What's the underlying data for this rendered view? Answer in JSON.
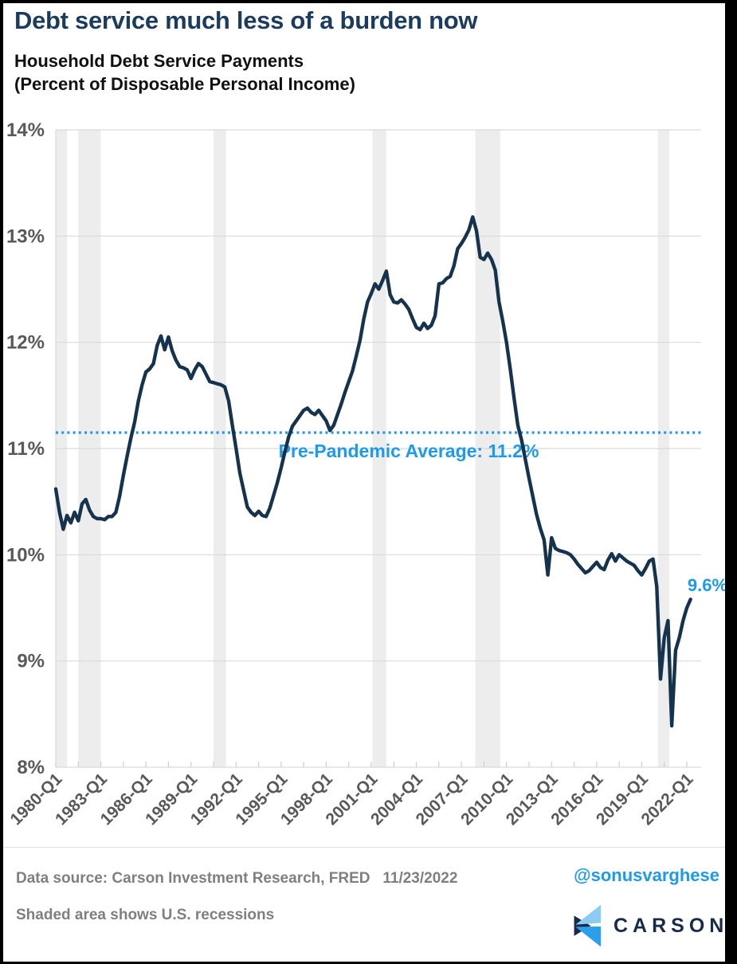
{
  "header": {
    "title": "Debt service much less of a burden now",
    "subtitle_line1": "Household Debt Service Payments",
    "subtitle_line2": "(Percent of Disposable Personal Income)"
  },
  "chart_data": {
    "type": "line",
    "title": "Household Debt Service Payments (Percent of Disposable Personal Income)",
    "x_start_year": 1980,
    "frequency": "quarterly",
    "x_tick_labels": [
      "1980-Q1",
      "1983-Q1",
      "1986-Q1",
      "1989-Q1",
      "1992-Q1",
      "1995-Q1",
      "1998-Q1",
      "2001-Q1",
      "2004-Q1",
      "2007-Q1",
      "2010-Q1",
      "2013-Q1",
      "2016-Q1",
      "2019-Q1",
      "2022-Q1"
    ],
    "y_tick_labels": [
      "14%",
      "13%",
      "12%",
      "11%",
      "10%",
      "9%",
      "8%"
    ],
    "y_tick_values": [
      14,
      13,
      12,
      11,
      10,
      9,
      8
    ],
    "ylim": [
      8,
      14
    ],
    "grid": "horizontal",
    "series": [
      {
        "name": "Household Debt Service Payments (% of Disposable Personal Income)",
        "values": [
          10.62,
          10.4,
          10.24,
          10.37,
          10.3,
          10.4,
          10.32,
          10.48,
          10.52,
          10.42,
          10.36,
          10.34,
          10.34,
          10.33,
          10.36,
          10.36,
          10.4,
          10.55,
          10.75,
          10.93,
          11.1,
          11.25,
          11.45,
          11.6,
          11.72,
          11.75,
          11.8,
          11.97,
          12.06,
          11.93,
          12.05,
          11.92,
          11.83,
          11.77,
          11.76,
          11.74,
          11.66,
          11.74,
          11.8,
          11.77,
          11.7,
          11.63,
          11.62,
          11.61,
          11.6,
          11.58,
          11.45,
          11.22,
          11.0,
          10.77,
          10.61,
          10.45,
          10.4,
          10.37,
          10.41,
          10.37,
          10.36,
          10.44,
          10.56,
          10.68,
          10.82,
          10.97,
          11.11,
          11.21,
          11.26,
          11.31,
          11.36,
          11.38,
          11.34,
          11.32,
          11.36,
          11.31,
          11.26,
          11.17,
          11.22,
          11.32,
          11.42,
          11.53,
          11.63,
          11.73,
          11.87,
          12.02,
          12.22,
          12.38,
          12.46,
          12.55,
          12.5,
          12.58,
          12.67,
          12.45,
          12.38,
          12.37,
          12.4,
          12.36,
          12.31,
          12.22,
          12.14,
          12.12,
          12.18,
          12.13,
          12.16,
          12.25,
          12.55,
          12.56,
          12.6,
          12.62,
          12.72,
          12.88,
          12.93,
          12.99,
          13.06,
          13.18,
          13.05,
          12.8,
          12.78,
          12.84,
          12.78,
          12.68,
          12.38,
          12.2,
          12.0,
          11.75,
          11.48,
          11.22,
          11.08,
          10.9,
          10.72,
          10.55,
          10.38,
          10.25,
          10.14,
          9.81,
          10.16,
          10.06,
          10.04,
          10.03,
          10.02,
          10.0,
          9.96,
          9.91,
          9.87,
          9.83,
          9.85,
          9.89,
          9.93,
          9.88,
          9.86,
          9.95,
          10.01,
          9.94,
          10.0,
          9.97,
          9.94,
          9.92,
          9.9,
          9.85,
          9.81,
          9.87,
          9.94,
          9.96,
          9.7,
          8.83,
          9.22,
          9.38,
          8.39,
          9.1,
          9.22,
          9.38,
          9.5,
          9.58
        ]
      }
    ],
    "average_line": {
      "value": 11.15,
      "label": "Pre-Pandemic Average: 11.2%"
    },
    "end_label": "9.6%",
    "recessions_note": "Shaded area shows U.S. recessions",
    "recession_spans": [
      [
        1980.0,
        1980.75
      ],
      [
        1981.5,
        1983.0
      ],
      [
        1990.5,
        1991.33
      ],
      [
        2001.08,
        2002.0
      ],
      [
        2007.92,
        2009.58
      ],
      [
        2020.08,
        2020.83
      ]
    ],
    "colors": {
      "line": "#16334E",
      "accent": "#1E9AEA",
      "grid": "#D9D9D9",
      "tick": "#CFCFCF",
      "recession_band": "#EDEDED",
      "axis_text": "#595959"
    },
    "legend": "none"
  },
  "footer": {
    "source_line": "Data source: Carson Investment Research, FRED   11/23/2022",
    "handle": "@sonusvarghese",
    "note": "Shaded area shows U.S. recessions",
    "brand": "CARSON"
  },
  "logo": {
    "colors": {
      "light": "#8CCBF4",
      "mid": "#2B9FE9",
      "dark": "#1A2B4A"
    }
  }
}
